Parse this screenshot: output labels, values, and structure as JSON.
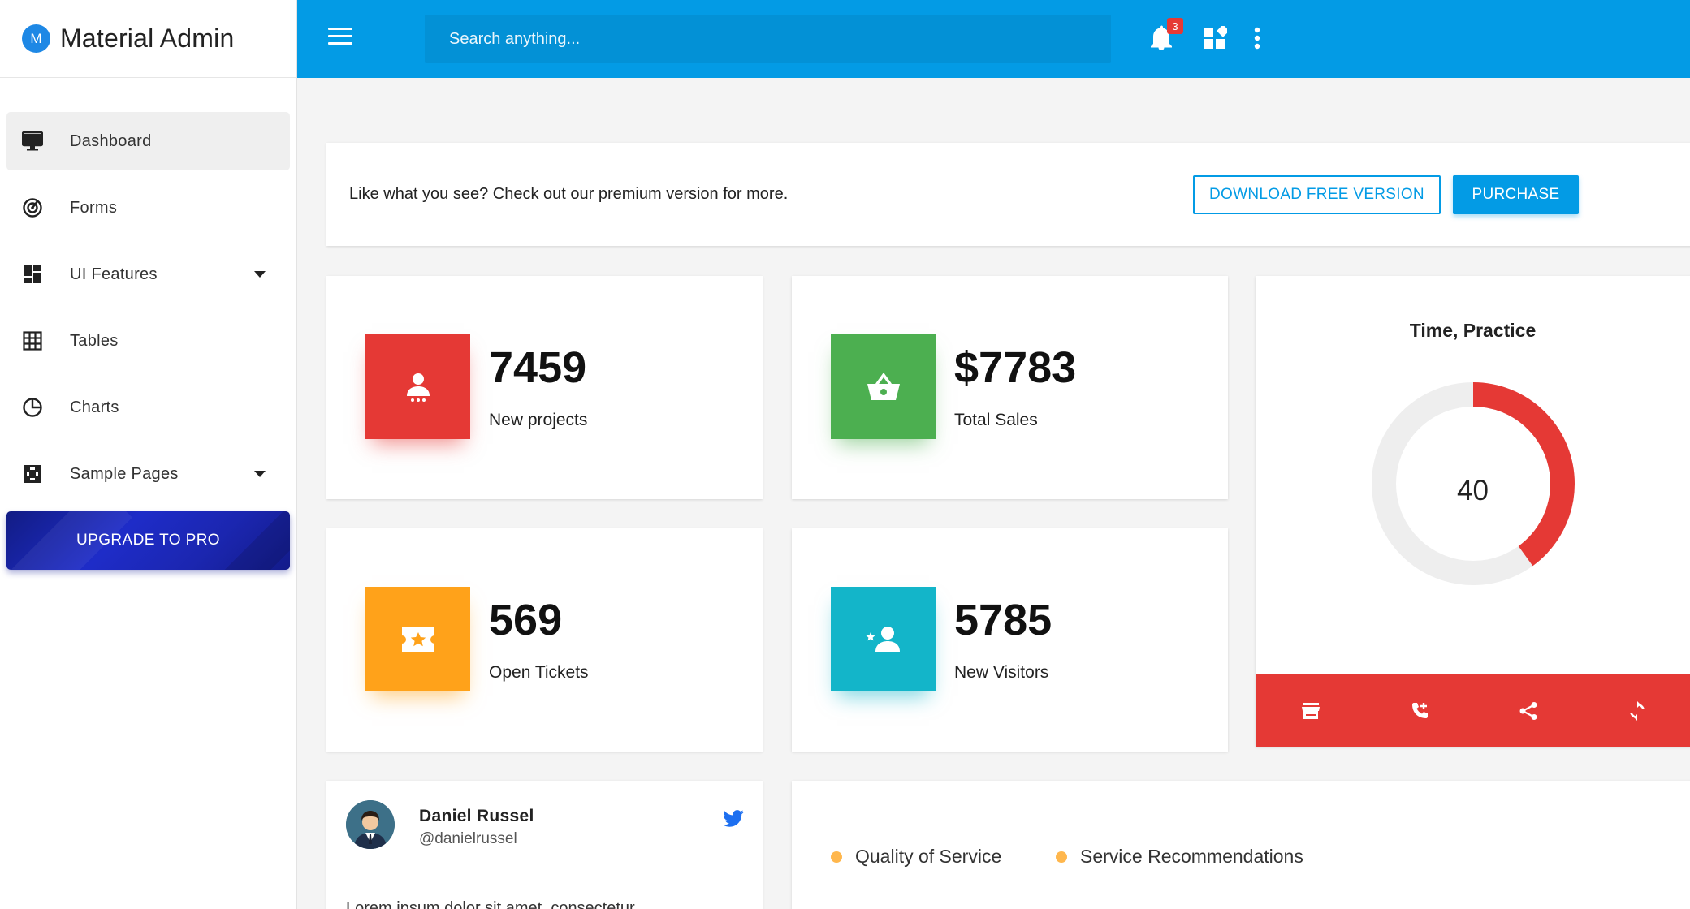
{
  "brand": {
    "logo_letter": "M",
    "name": "Material Admin"
  },
  "sidebar": {
    "items": [
      {
        "label": "Dashboard",
        "icon": "monitor-icon"
      },
      {
        "label": "Forms",
        "icon": "target-icon"
      },
      {
        "label": "UI Features",
        "icon": "dashboard-grid-icon"
      },
      {
        "label": "Tables",
        "icon": "grid-icon"
      },
      {
        "label": "Charts",
        "icon": "pie-chart-icon"
      },
      {
        "label": "Sample Pages",
        "icon": "widgets-icon"
      }
    ],
    "upgrade_label": "UPGRADE TO PRO"
  },
  "header": {
    "search_placeholder": "Search anything...",
    "notification_count": "3"
  },
  "promo": {
    "text": "Like what you see? Check out our premium version for more.",
    "download_label": "DOWNLOAD FREE VERSION",
    "purchase_label": "PURCHASE"
  },
  "stats": [
    {
      "value": "7459",
      "label": "New projects",
      "color": "#e53935",
      "icon": "person-icon"
    },
    {
      "value": "$7783",
      "label": "Total Sales",
      "color": "#4caf50",
      "icon": "basket-icon"
    },
    {
      "value": "569",
      "label": "Open Tickets",
      "color": "#ffa21a",
      "icon": "ticket-icon"
    },
    {
      "value": "5785",
      "label": "New Visitors",
      "color": "#13b5c9",
      "icon": "person-star-icon"
    }
  ],
  "gauge": {
    "title": "Time, Practice",
    "value": "40",
    "fraction": 0.4,
    "colors": {
      "fill": "#e53935",
      "track": "#eeeeee"
    },
    "actions": [
      "store-icon",
      "phone-add-icon",
      "share-icon",
      "refresh-icon"
    ]
  },
  "profile": {
    "name": "Daniel Russel",
    "handle": "@danielrussel",
    "text": "Lorem ipsum dolor sit amet, consectetur"
  },
  "legend": {
    "items": [
      "Quality of Service",
      "Service Recommendations"
    ],
    "color": "#ffb74d"
  },
  "colors": {
    "header": "#039be5",
    "accent": "#039be5"
  }
}
